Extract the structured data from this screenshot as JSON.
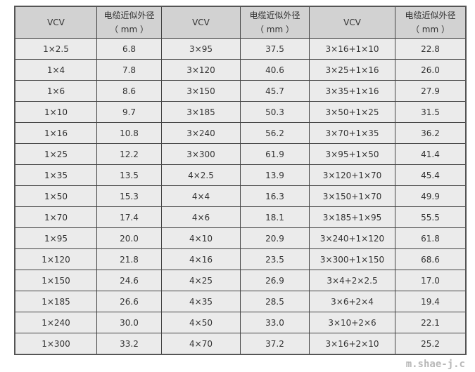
{
  "header": {
    "col_vcv": "VCV",
    "col_diameter_line1": "电缆近似外径",
    "col_diameter_line2": "（ mm ）"
  },
  "rows": [
    [
      "1×2.5",
      "6.8",
      "3×95",
      "37.5",
      "3×16+1×10",
      "22.8"
    ],
    [
      "1×4",
      "7.8",
      "3×120",
      "40.6",
      "3×25+1×16",
      "26.0"
    ],
    [
      "1×6",
      "8.6",
      "3×150",
      "45.7",
      "3×35+1×16",
      "27.9"
    ],
    [
      "1×10",
      "9.7",
      "3×185",
      "50.3",
      "3×50+1×25",
      "31.5"
    ],
    [
      "1×16",
      "10.8",
      "3×240",
      "56.2",
      "3×70+1×35",
      "36.2"
    ],
    [
      "1×25",
      "12.2",
      "3×300",
      "61.9",
      "3×95+1×50",
      "41.4"
    ],
    [
      "1×35",
      "13.5",
      "4×2.5",
      "13.9",
      "3×120+1×70",
      "45.4"
    ],
    [
      "1×50",
      "15.3",
      "4×4",
      "16.3",
      "3×150+1×70",
      "49.9"
    ],
    [
      "1×70",
      "17.4",
      "4×6",
      "18.1",
      "3×185+1×95",
      "55.5"
    ],
    [
      "1×95",
      "20.0",
      "4×10",
      "20.9",
      "3×240+1×120",
      "61.8"
    ],
    [
      "1×120",
      "21.8",
      "4×16",
      "23.5",
      "3×300+1×150",
      "68.6"
    ],
    [
      "1×150",
      "24.6",
      "4×25",
      "26.9",
      "3×4+2×2.5",
      "17.0"
    ],
    [
      "1×185",
      "26.6",
      "4×35",
      "28.5",
      "3×6+2×4",
      "19.4"
    ],
    [
      "1×240",
      "30.0",
      "4×50",
      "33.0",
      "3×10+2×6",
      "22.1"
    ],
    [
      "1×300",
      "33.2",
      "4×70",
      "37.2",
      "3×16+2×10",
      "25.2"
    ]
  ],
  "watermark": "m.shae-j.c"
}
